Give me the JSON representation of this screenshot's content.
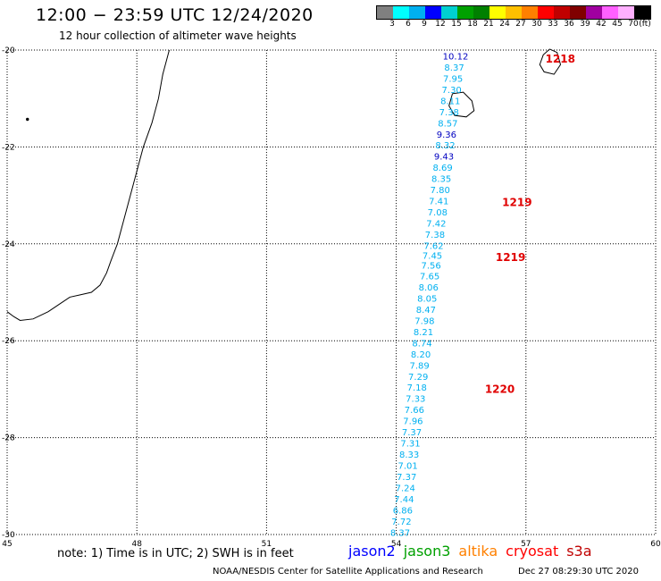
{
  "title": "12:00 − 23:59 UTC 12/24/2020",
  "subtitle": "12 hour collection of altimeter wave heights",
  "legend": {
    "colors": [
      "#808080",
      "#00ffff",
      "#00b0f0",
      "#0000ff",
      "#00d0d0",
      "#00a000",
      "#008000",
      "#ffff00",
      "#ffc000",
      "#ff8000",
      "#ff0000",
      "#c00000",
      "#800000",
      "#a000a0",
      "#ff60ff",
      "#ffb0ff",
      "#000000"
    ],
    "labels": [
      "3",
      "6",
      "9",
      "12",
      "15",
      "18",
      "21",
      "24",
      "27",
      "30",
      "33",
      "36",
      "39",
      "42",
      "45",
      "70",
      "(ft)"
    ]
  },
  "map": {
    "lon_range": [
      45,
      60
    ],
    "lat_range": [
      -30,
      -20
    ],
    "lon_ticks": [
      "45",
      "48",
      "51",
      "54",
      "57",
      "60"
    ],
    "lat_ticks": [
      "-20",
      "-22",
      "-24",
      "-26",
      "-28",
      "-30"
    ],
    "grid": true
  },
  "observations": [
    {
      "value": "10.12",
      "lat": -20.12,
      "color": "#0000c0"
    },
    {
      "value": "8.37",
      "lat": -20.35,
      "color": "#00b0f0"
    },
    {
      "value": "7.95",
      "lat": -20.58,
      "color": "#00b0f0"
    },
    {
      "value": "7.30",
      "lat": -20.81,
      "color": "#00b0f0"
    },
    {
      "value": "8.11",
      "lat": -21.04,
      "color": "#00b0f0"
    },
    {
      "value": "7.38",
      "lat": -21.27,
      "color": "#00b0f0"
    },
    {
      "value": "8.57",
      "lat": -21.5,
      "color": "#00b0f0"
    },
    {
      "value": "9.36",
      "lat": -21.73,
      "color": "#0000c0"
    },
    {
      "value": "8.32",
      "lat": -21.96,
      "color": "#00b0f0"
    },
    {
      "value": "9.43",
      "lat": -22.19,
      "color": "#0000c0"
    },
    {
      "value": "8.69",
      "lat": -22.42,
      "color": "#00b0f0"
    },
    {
      "value": "8.35",
      "lat": -22.65,
      "color": "#00b0f0"
    },
    {
      "value": "7.80",
      "lat": -22.88,
      "color": "#00b0f0"
    },
    {
      "value": "7.41",
      "lat": -23.11,
      "color": "#00b0f0"
    },
    {
      "value": "7.08",
      "lat": -23.34,
      "color": "#00b0f0"
    },
    {
      "value": "7.42",
      "lat": -23.57,
      "color": "#00b0f0"
    },
    {
      "value": "7.38",
      "lat": -23.8,
      "color": "#00b0f0"
    },
    {
      "value": "7.62",
      "lat": -24.03,
      "color": "#00b0f0"
    },
    {
      "value": "7.45",
      "lat": -24.23,
      "color": "#00b0f0"
    },
    {
      "value": "7.56",
      "lat": -24.44,
      "color": "#00b0f0"
    },
    {
      "value": "7.65",
      "lat": -24.66,
      "color": "#00b0f0"
    },
    {
      "value": "8.06",
      "lat": -24.89,
      "color": "#00b0f0"
    },
    {
      "value": "8.05",
      "lat": -25.12,
      "color": "#00b0f0"
    },
    {
      "value": "8.47",
      "lat": -25.35,
      "color": "#00b0f0"
    },
    {
      "value": "7.98",
      "lat": -25.58,
      "color": "#00b0f0"
    },
    {
      "value": "8.21",
      "lat": -25.81,
      "color": "#00b0f0"
    },
    {
      "value": "8.74",
      "lat": -26.04,
      "color": "#00b0f0"
    },
    {
      "value": "8.20",
      "lat": -26.27,
      "color": "#00b0f0"
    },
    {
      "value": "7.89",
      "lat": -26.5,
      "color": "#00b0f0"
    },
    {
      "value": "7.29",
      "lat": -26.73,
      "color": "#00b0f0"
    },
    {
      "value": "7.18",
      "lat": -26.96,
      "color": "#00b0f0"
    },
    {
      "value": "7.33",
      "lat": -27.19,
      "color": "#00b0f0"
    },
    {
      "value": "7.66",
      "lat": -27.42,
      "color": "#00b0f0"
    },
    {
      "value": "7.96",
      "lat": -27.65,
      "color": "#00b0f0"
    },
    {
      "value": "7.37",
      "lat": -27.88,
      "color": "#00b0f0"
    },
    {
      "value": "7.31",
      "lat": -28.11,
      "color": "#00b0f0"
    },
    {
      "value": "8.33",
      "lat": -28.34,
      "color": "#00b0f0"
    },
    {
      "value": "7.01",
      "lat": -28.57,
      "color": "#00b0f0"
    },
    {
      "value": "7.37",
      "lat": -28.8,
      "color": "#00b0f0"
    },
    {
      "value": "7.24",
      "lat": -29.03,
      "color": "#00b0f0"
    },
    {
      "value": "7.44",
      "lat": -29.26,
      "color": "#00b0f0"
    },
    {
      "value": "6.86",
      "lat": -29.49,
      "color": "#00b0f0"
    },
    {
      "value": "7.72",
      "lat": -29.72,
      "color": "#00b0f0"
    },
    {
      "value": "8.37",
      "lat": -29.95,
      "color": "#00b0f0"
    }
  ],
  "pass_times": [
    {
      "label": "1218",
      "lon": 57.45,
      "lat": -20.18
    },
    {
      "label": "1219",
      "lon": 56.45,
      "lat": -23.15
    },
    {
      "label": "1219",
      "lon": 56.3,
      "lat": -24.28
    },
    {
      "label": "1220",
      "lon": 56.05,
      "lat": -27.0
    }
  ],
  "note": "note:  1) Time is in UTC;  2) SWH is in feet",
  "satellites": [
    {
      "name": "jason2",
      "color": "#0000ff"
    },
    {
      "name": "jason3",
      "color": "#00a000"
    },
    {
      "name": "altika",
      "color": "#ff8000"
    },
    {
      "name": "cryosat",
      "color": "#ff0000"
    },
    {
      "name": "s3a",
      "color": "#c00000"
    }
  ],
  "credit": "NOAA/NESDIS Center for Satellite Applications and Research",
  "timestamp": "Dec 27 08:29:30 UTC 2020"
}
